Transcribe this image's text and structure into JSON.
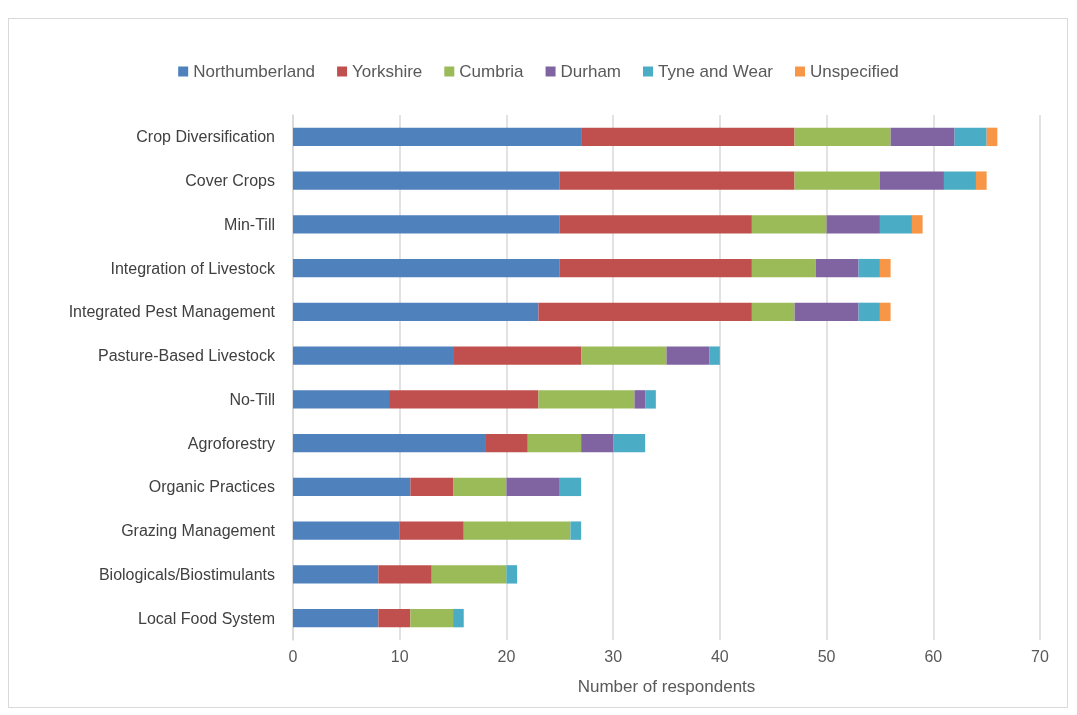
{
  "chart_data": {
    "type": "bar",
    "orientation": "horizontal",
    "stacked": true,
    "xlabel": "Number of respondents",
    "categories": [
      "Crop Diversification",
      "Cover Crops",
      "Min-Till",
      "Integration of Livestock",
      "Integrated Pest Management",
      "Pasture-Based Livestock",
      "No-Till",
      "Agroforestry",
      "Organic Practices",
      "Grazing Management",
      "Biologicals/Biostimulants",
      "Local Food System"
    ],
    "series": [
      {
        "name": "Northumberland",
        "color": "#4f81bd",
        "values": [
          27,
          25,
          25,
          25,
          23,
          15,
          9,
          18,
          11,
          10,
          8,
          8
        ]
      },
      {
        "name": "Yorkshire",
        "color": "#c0504d",
        "values": [
          20,
          22,
          18,
          18,
          20,
          12,
          14,
          4,
          4,
          6,
          5,
          3
        ]
      },
      {
        "name": "Cumbria",
        "color": "#9bbb59",
        "values": [
          9,
          8,
          7,
          6,
          4,
          8,
          9,
          5,
          5,
          10,
          7,
          4
        ]
      },
      {
        "name": "Durham",
        "color": "#8064a2",
        "values": [
          6,
          6,
          5,
          4,
          6,
          4,
          1,
          3,
          5,
          0,
          0,
          0
        ]
      },
      {
        "name": "Tyne and Wear",
        "color": "#4bacc6",
        "values": [
          3,
          3,
          3,
          2,
          2,
          1,
          1,
          3,
          2,
          1,
          1,
          1
        ]
      },
      {
        "name": "Unspecified",
        "color": "#f79646",
        "values": [
          1,
          1,
          1,
          1,
          1,
          0,
          0,
          0,
          0,
          0,
          0,
          0
        ]
      }
    ],
    "xlim": [
      0,
      70
    ],
    "xticks": [
      0,
      10,
      20,
      30,
      40,
      50,
      60,
      70
    ],
    "grid": "x",
    "legend": "top"
  }
}
